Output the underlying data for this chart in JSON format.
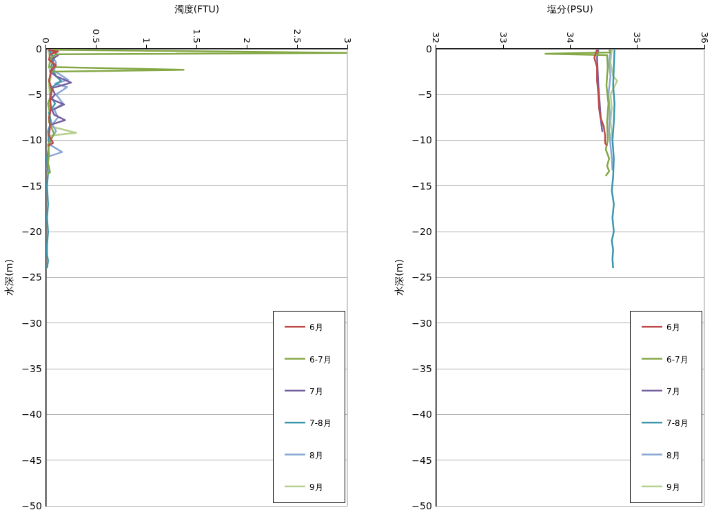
{
  "chart_data": [
    {
      "type": "line",
      "xlabel": "濁度(FTU)",
      "ylabel": "水深(m)",
      "xlim": [
        0,
        3
      ],
      "xticks": [
        0,
        0.5,
        1,
        1.5,
        2,
        2.5,
        3
      ],
      "ylim": [
        -50,
        0
      ],
      "yticks": [
        0,
        -5,
        -10,
        -15,
        -20,
        -25,
        -30,
        -35,
        -40,
        -45,
        -50
      ],
      "grid": "y",
      "legend": "bottom right",
      "series": [
        {
          "name": "6月",
          "color": "#be4b48",
          "x": [
            0.02,
            0.06,
            0.12,
            0.04,
            0.03,
            0.1,
            0.05,
            0.03,
            0.06,
            0.04,
            0.05,
            0.03,
            0.04,
            0.03,
            0.07,
            0.02
          ],
          "values": [
            -0.1,
            -0.2,
            -0.3,
            -0.6,
            -1.2,
            -1.8,
            -2.4,
            -3.5,
            -4.5,
            -5.5,
            -6.5,
            -7.5,
            -8.5,
            -9.5,
            -10.3,
            -10.6
          ]
        },
        {
          "name": "6-7月",
          "color": "#85a846",
          "x": [
            0.05,
            0.9,
            3,
            0.1,
            0.05,
            0.03,
            1.37,
            0.05,
            0.03,
            0.05,
            0.02,
            0.04,
            0.03,
            0.08,
            0.02,
            0.03,
            0.02,
            0.04,
            0.01
          ],
          "values": [
            -0.1,
            -0.2,
            -0.45,
            -0.6,
            -1.0,
            -2.0,
            -2.3,
            -2.5,
            -3.5,
            -5,
            -6,
            -7,
            -8,
            -9.3,
            -10.5,
            -11.5,
            -12.5,
            -13.5,
            -13.8
          ]
        },
        {
          "name": "7月",
          "color": "#7660a0",
          "x": [
            0.04,
            0.12,
            0.05,
            0.08,
            0.04,
            0.1,
            0.25,
            0.06,
            0.09,
            0.05,
            0.18,
            0.06,
            0.08,
            0.19,
            0.05,
            0.03
          ],
          "values": [
            -0.1,
            -0.7,
            -1.2,
            -1.8,
            -2.5,
            -3.0,
            -3.7,
            -4.3,
            -5.0,
            -5.5,
            -6.1,
            -6.7,
            -7.2,
            -7.8,
            -8.3,
            -8.8
          ]
        },
        {
          "name": "7-8月",
          "color": "#3b96ad",
          "x": [
            0.03,
            0.08,
            0.05,
            0.1,
            0.15,
            0.06,
            0.04,
            0.09,
            0.03,
            0.05,
            0.02,
            0.03,
            0.01,
            0.02,
            0.01,
            0.02,
            0.01,
            0.02,
            0.01,
            0.01,
            0.02,
            0.01
          ],
          "values": [
            -0.2,
            -1,
            -2,
            -3,
            -3.5,
            -4.2,
            -5,
            -6,
            -7,
            -8,
            -9,
            -10.5,
            -12,
            -13.6,
            -15,
            -17,
            -18.5,
            -20,
            -21.5,
            -22.5,
            -23.2,
            -24
          ]
        },
        {
          "name": "8月",
          "color": "#8aa8d6",
          "x": [
            0.03,
            0.06,
            0.1,
            0.08,
            0.22,
            0.09,
            0.21,
            0.1,
            0.17,
            0.08,
            0.12,
            0.06,
            0.1,
            0.05,
            0.04,
            0.16,
            0.02,
            0.02,
            0.01
          ],
          "values": [
            -0.1,
            -0.8,
            -1.5,
            -2.4,
            -3.4,
            -3.8,
            -4.2,
            -5.0,
            -6.0,
            -6.6,
            -7.5,
            -8.3,
            -9.0,
            -9.8,
            -10.5,
            -11.3,
            -11.8,
            -12.6,
            -13.2
          ]
        },
        {
          "name": "9月",
          "color": "#b5cf8e",
          "x": [
            0.02,
            0.04,
            0.03,
            0.05,
            0.03,
            0.04,
            0.03,
            0.05,
            0.3,
            0.04,
            0.02
          ],
          "values": [
            -0.1,
            -1,
            -2,
            -3,
            -4,
            -5.5,
            -7,
            -8.5,
            -9.2,
            -9.5,
            -10
          ]
        }
      ]
    },
    {
      "type": "line",
      "xlabel": "塩分(PSU)",
      "ylabel": "水深(m)",
      "xlim": [
        32,
        36
      ],
      "xticks": [
        32,
        33,
        34,
        35,
        36
      ],
      "ylim": [
        -50,
        0
      ],
      "yticks": [
        0,
        -5,
        -10,
        -15,
        -20,
        -25,
        -30,
        -35,
        -40,
        -45,
        -50
      ],
      "grid": "y",
      "legend": "bottom right",
      "series": [
        {
          "name": "6月",
          "color": "#be4b48",
          "x": [
            34.4,
            34.38,
            34.36,
            34.4,
            34.4,
            34.42,
            34.43,
            34.45,
            34.5,
            34.52,
            34.52,
            34.55
          ],
          "values": [
            -0.1,
            -0.5,
            -1,
            -2,
            -3.5,
            -5,
            -6.5,
            -7.5,
            -8.5,
            -9.5,
            -10.3,
            -10.6
          ]
        },
        {
          "name": "6-7月",
          "color": "#85a846",
          "x": [
            34.58,
            34.6,
            33.63,
            34.55,
            34.56,
            34.54,
            34.57,
            34.55,
            34.56,
            34.53,
            34.58,
            34.55,
            34.58,
            34.53
          ],
          "values": [
            -0.1,
            -0.4,
            -0.55,
            -0.7,
            -2,
            -4,
            -6,
            -8,
            -10,
            -11,
            -12,
            -12.8,
            -13.4,
            -13.9
          ]
        },
        {
          "name": "7月",
          "color": "#7660a0",
          "x": [
            34.42,
            34.4,
            34.41,
            34.42,
            34.43,
            34.44,
            34.45,
            34.46,
            34.48
          ],
          "values": [
            -0.1,
            -1,
            -2.5,
            -4,
            -5,
            -6,
            -7,
            -8,
            -9.1
          ]
        },
        {
          "name": "7-8月",
          "color": "#3b96ad",
          "x": [
            34.66,
            34.65,
            34.64,
            34.66,
            34.65,
            34.63,
            34.65,
            34.64,
            34.62,
            34.65,
            34.63,
            34.65,
            34.62,
            34.64,
            34.63,
            34.64
          ],
          "values": [
            -0.1,
            -2,
            -4,
            -6,
            -8,
            -10,
            -12,
            -14,
            -15.5,
            -17,
            -18.5,
            -20,
            -21,
            -22,
            -23,
            -24
          ]
        },
        {
          "name": "8月",
          "color": "#8aa8d6",
          "x": [
            34.6,
            34.58,
            34.6,
            34.57,
            34.59,
            34.58,
            34.6,
            34.62,
            34.63
          ],
          "values": [
            -0.1,
            -1.5,
            -3,
            -5,
            -7,
            -9,
            -10.5,
            -12,
            -13.3
          ]
        },
        {
          "name": "9月",
          "color": "#b5cf8e",
          "x": [
            34.62,
            34.6,
            34.64,
            34.7,
            34.6,
            34.62,
            34.6,
            34.62,
            34.6
          ],
          "values": [
            -0.1,
            -1.5,
            -3,
            -3.5,
            -5,
            -6.5,
            -8,
            -9,
            -10
          ]
        }
      ]
    }
  ]
}
